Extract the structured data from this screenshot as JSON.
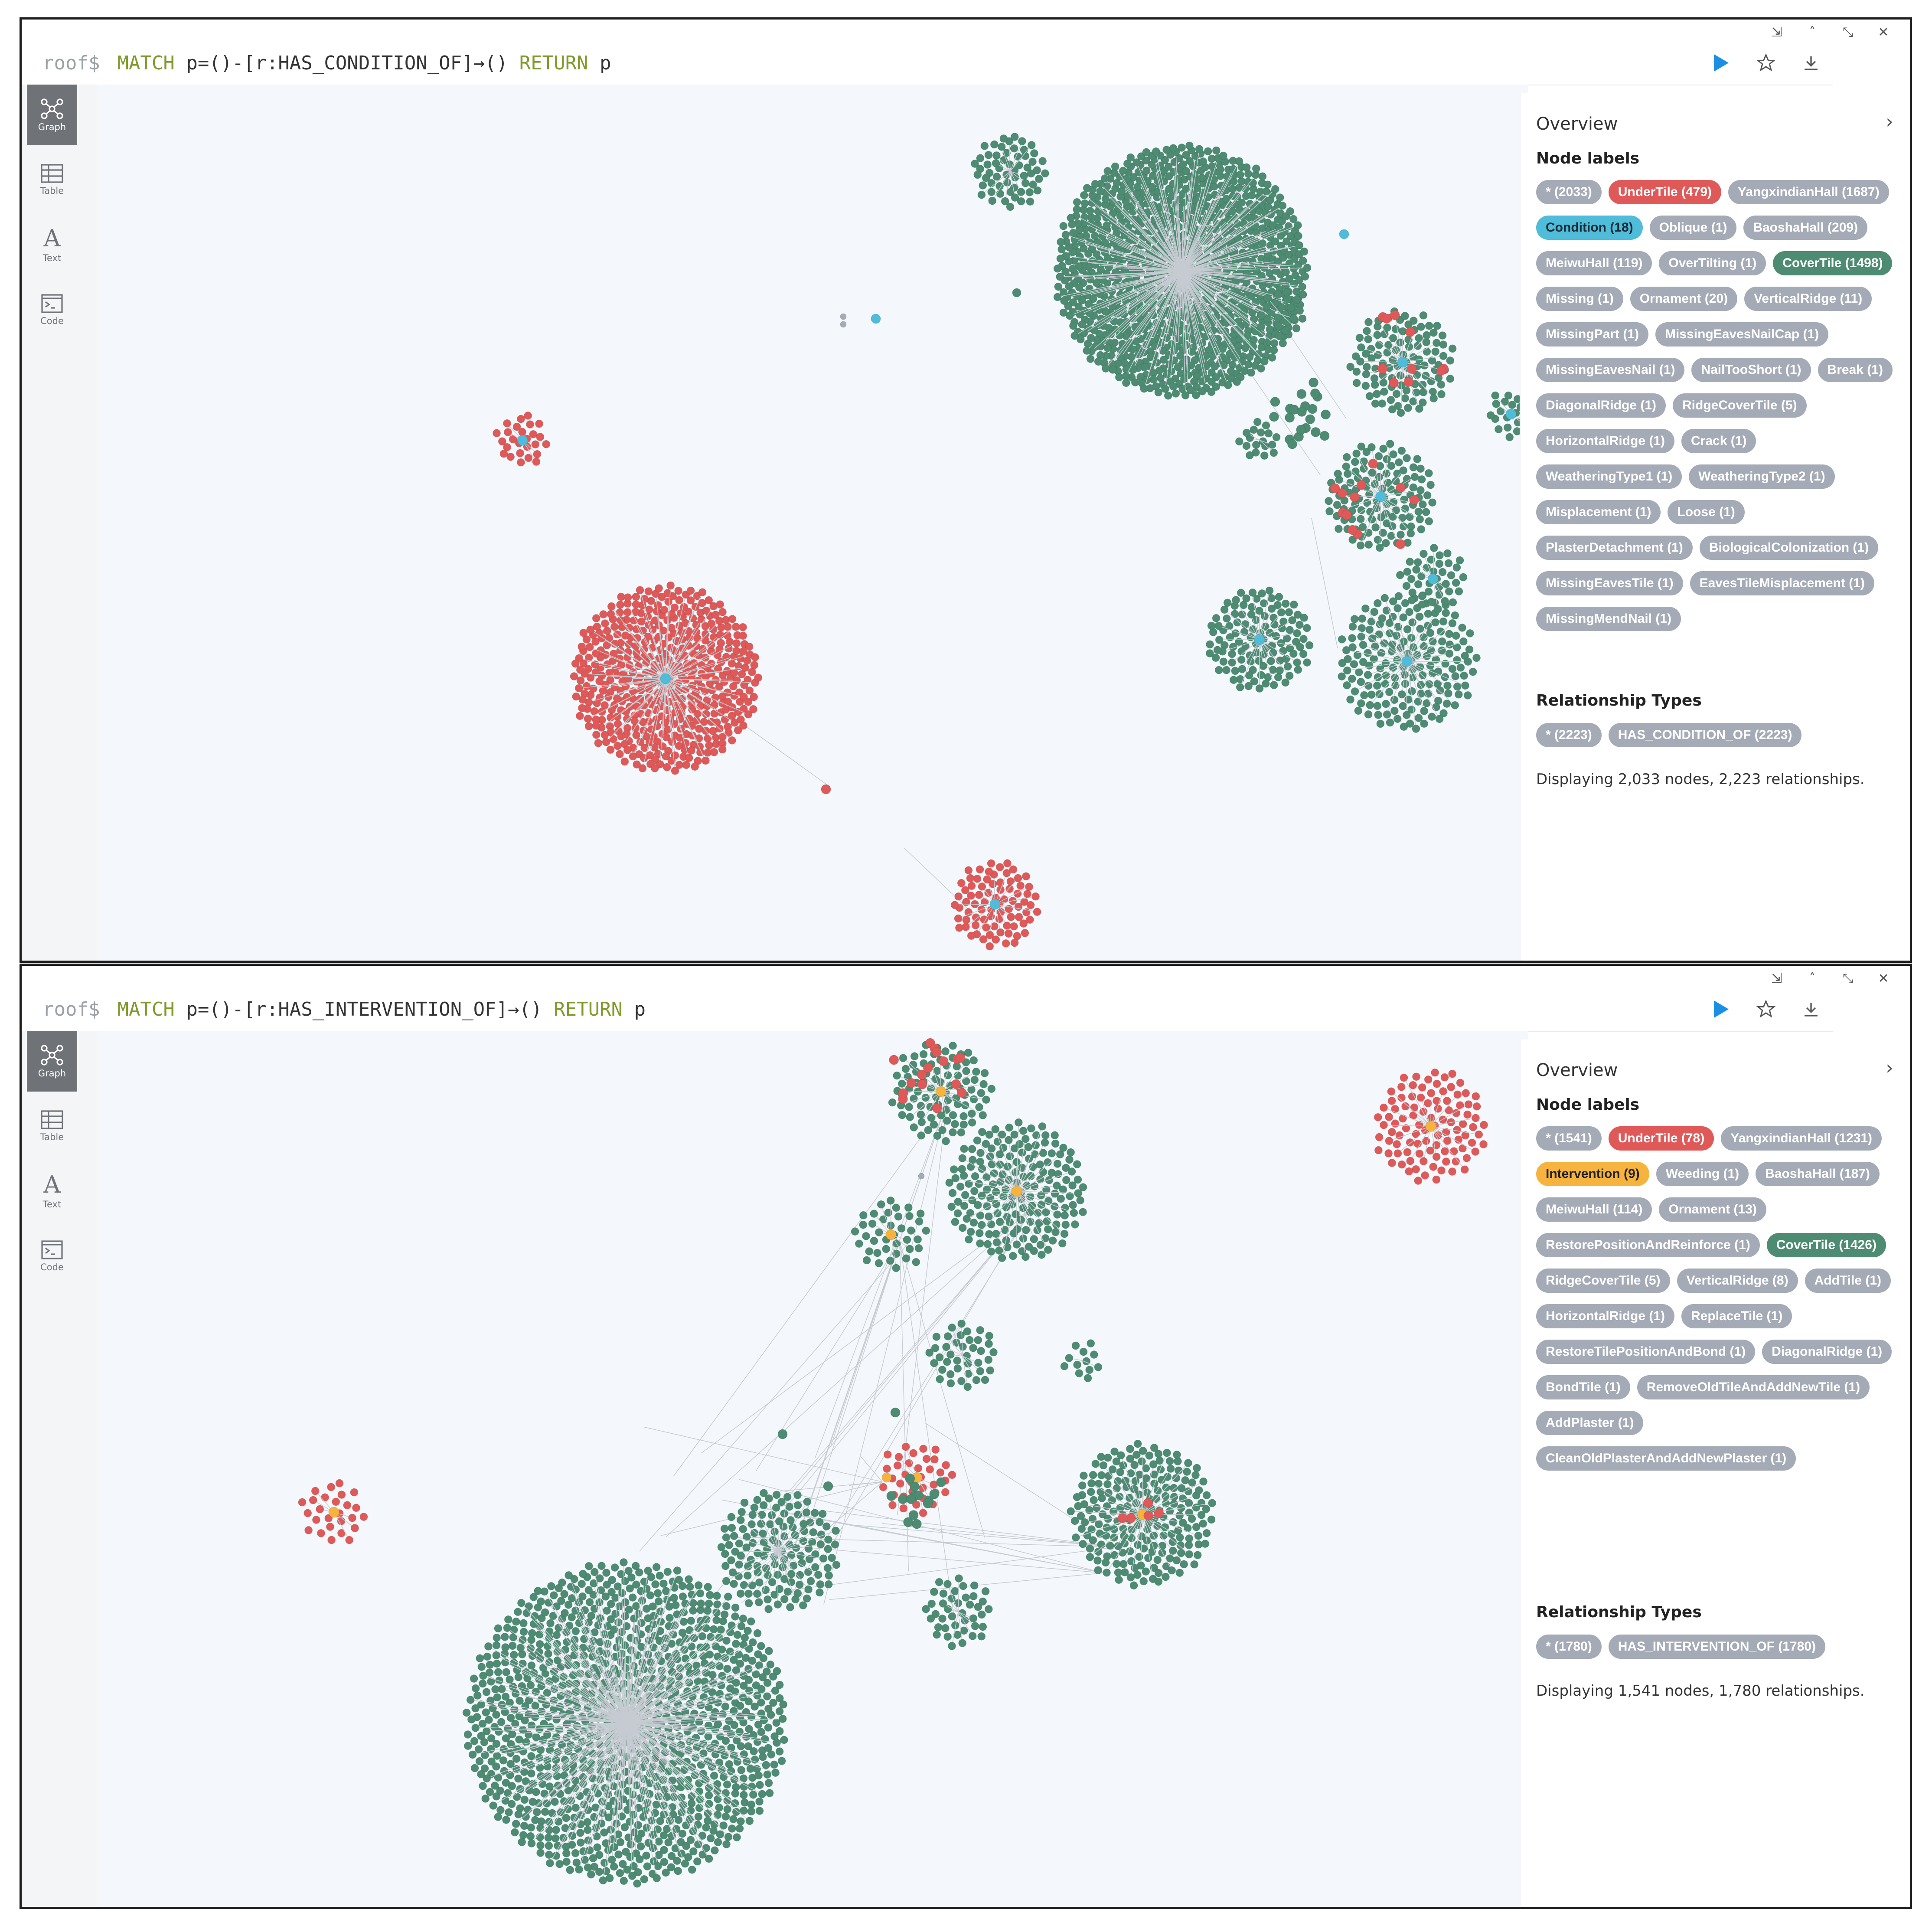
{
  "window_controls": [
    "⇲",
    "˄",
    "⤡",
    "✕"
  ],
  "sidebar": {
    "items": [
      {
        "label": "Graph",
        "icon": "graph-icon",
        "active": true
      },
      {
        "label": "Table",
        "icon": "table-icon",
        "active": false
      },
      {
        "label": "Text",
        "icon": "text-icon",
        "active": false
      },
      {
        "label": "Code",
        "icon": "code-icon",
        "active": false
      }
    ]
  },
  "colors": {
    "cover_tile": "#4d8c72",
    "under_tile": "#e05959",
    "condition": "#4fbcd9",
    "intervention": "#f6b43f",
    "unlabeled": "#a5abb6",
    "run_button": "#1a8fe3"
  },
  "panels": [
    {
      "prompt": "roof$",
      "query": {
        "kw1": "MATCH",
        "body": " p=()-[r:HAS_CONDITION_OF]→() ",
        "kw2": "RETURN",
        "tail": " p"
      },
      "overview": {
        "title": "Overview",
        "node_labels_heading": "Node labels",
        "node_labels": [
          {
            "text": "* (2033)",
            "color": "gray"
          },
          {
            "text": "UnderTile (479)",
            "color": "red"
          },
          {
            "text": "YangxindianHall (1687)",
            "color": "gray"
          },
          {
            "text": "Condition (18)",
            "color": "blue"
          },
          {
            "text": "Oblique (1)",
            "color": "gray"
          },
          {
            "text": "BaoshaHall (209)",
            "color": "gray"
          },
          {
            "text": "MeiwuHall (119)",
            "color": "gray"
          },
          {
            "text": "OverTilting (1)",
            "color": "gray"
          },
          {
            "text": "CoverTile (1498)",
            "color": "green"
          },
          {
            "text": "Missing (1)",
            "color": "gray"
          },
          {
            "text": "Ornament (20)",
            "color": "gray"
          },
          {
            "text": "VerticalRidge (11)",
            "color": "gray"
          },
          {
            "text": "MissingPart (1)",
            "color": "gray"
          },
          {
            "text": "MissingEavesNailCap (1)",
            "color": "gray"
          },
          {
            "text": "MissingEavesNail (1)",
            "color": "gray"
          },
          {
            "text": "NailTooShort (1)",
            "color": "gray"
          },
          {
            "text": "Break (1)",
            "color": "gray"
          },
          {
            "text": "DiagonalRidge (1)",
            "color": "gray"
          },
          {
            "text": "RidgeCoverTile (5)",
            "color": "gray"
          },
          {
            "text": "HorizontalRidge (1)",
            "color": "gray"
          },
          {
            "text": "Crack (1)",
            "color": "gray"
          },
          {
            "text": "WeatheringType1 (1)",
            "color": "gray"
          },
          {
            "text": "WeatheringType2 (1)",
            "color": "gray"
          },
          {
            "text": "Misplacement (1)",
            "color": "gray"
          },
          {
            "text": "Loose (1)",
            "color": "gray"
          },
          {
            "text": "PlasterDetachment (1)",
            "color": "gray"
          },
          {
            "text": "BiologicalColonization (1)",
            "color": "gray"
          },
          {
            "text": "MissingEavesTile (1)",
            "color": "gray"
          },
          {
            "text": "EavesTileMisplacement (1)",
            "color": "gray"
          },
          {
            "text": "MissingMendNail (1)",
            "color": "gray"
          }
        ],
        "rel_types_heading": "Relationship Types",
        "rel_types": [
          {
            "text": "* (2223)",
            "color": "gray"
          },
          {
            "text": "HAS_CONDITION_OF (2223)",
            "color": "gray"
          }
        ],
        "status": "Displaying 2,033 nodes, 2,223 relationships."
      }
    },
    {
      "prompt": "roof$",
      "query": {
        "kw1": "MATCH",
        "body": " p=()-[r:HAS_INTERVENTION_OF]→() ",
        "kw2": "RETURN",
        "tail": " p"
      },
      "overview": {
        "title": "Overview",
        "node_labels_heading": "Node labels",
        "node_labels": [
          {
            "text": "* (1541)",
            "color": "gray"
          },
          {
            "text": "UnderTile (78)",
            "color": "red"
          },
          {
            "text": "YangxindianHall (1231)",
            "color": "gray"
          },
          {
            "text": "Intervention (9)",
            "color": "orange"
          },
          {
            "text": "Weeding (1)",
            "color": "gray"
          },
          {
            "text": "BaoshaHall (187)",
            "color": "gray"
          },
          {
            "text": "MeiwuHall (114)",
            "color": "gray"
          },
          {
            "text": "Ornament (13)",
            "color": "gray"
          },
          {
            "text": "RestorePositionAndReinforce (1)",
            "color": "gray"
          },
          {
            "text": "CoverTile (1426)",
            "color": "green"
          },
          {
            "text": "RidgeCoverTile (5)",
            "color": "gray"
          },
          {
            "text": "VerticalRidge (8)",
            "color": "gray"
          },
          {
            "text": "AddTile (1)",
            "color": "gray"
          },
          {
            "text": "HorizontalRidge (1)",
            "color": "gray"
          },
          {
            "text": "ReplaceTile (1)",
            "color": "gray"
          },
          {
            "text": "RestoreTilePositionAndBond (1)",
            "color": "gray"
          },
          {
            "text": "DiagonalRidge (1)",
            "color": "gray"
          },
          {
            "text": "BondTile (1)",
            "color": "gray"
          },
          {
            "text": "RemoveOldTileAndAddNewTile (1)",
            "color": "gray"
          },
          {
            "text": "AddPlaster (1)",
            "color": "gray"
          },
          {
            "text": "CleanOldPlasterAndAddNewPlaster (1)",
            "color": "gray"
          }
        ],
        "rel_types_heading": "Relationship Types",
        "rel_types": [
          {
            "text": "* (1780)",
            "color": "gray"
          },
          {
            "text": "HAS_INTERVENTION_OF (1780)",
            "color": "gray"
          }
        ],
        "status": "Displaying 1,541 nodes, 1,780 relationships."
      }
    }
  ]
}
